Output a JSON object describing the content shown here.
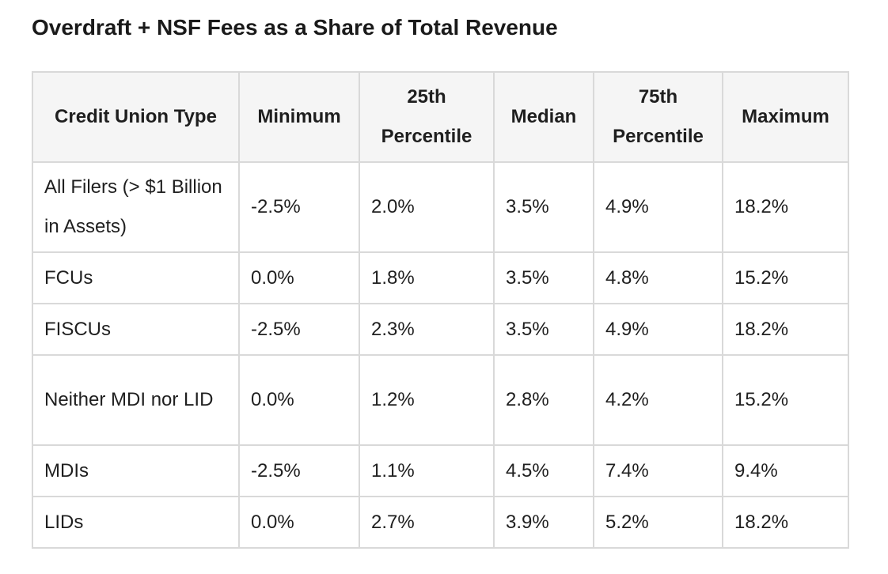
{
  "title": "Overdraft + NSF Fees as a Share of Total Revenue",
  "table": {
    "headers": [
      "Credit Union Type",
      "Minimum",
      "25th Percentile",
      "Median",
      "75th Percentile",
      "Maximum"
    ],
    "rows": [
      [
        "All Filers (> $1 Billion in Assets)",
        "-2.5%",
        "2.0%",
        "3.5%",
        "4.9%",
        "18.2%"
      ],
      [
        "FCUs",
        "0.0%",
        "1.8%",
        "3.5%",
        "4.8%",
        "15.2%"
      ],
      [
        "FISCUs",
        "-2.5%",
        "2.3%",
        "3.5%",
        "4.9%",
        "18.2%"
      ],
      [
        "Neither MDI nor LID",
        "0.0%",
        "1.2%",
        "2.8%",
        "4.2%",
        "15.2%"
      ],
      [
        "MDIs",
        "-2.5%",
        "1.1%",
        "4.5%",
        "7.4%",
        "9.4%"
      ],
      [
        "LIDs",
        "0.0%",
        "2.7%",
        "3.9%",
        "5.2%",
        "18.2%"
      ]
    ]
  }
}
